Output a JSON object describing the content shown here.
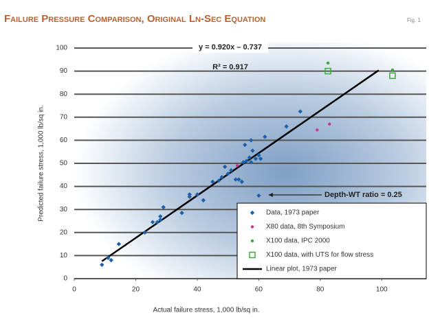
{
  "chart_data": {
    "type": "scatter",
    "title": "Failure Pressure Comparison, Original Ln-Sec Equation",
    "figure_label": "Fig. 1",
    "x_label": "Actual failure stress, 1,000 lb/sq in.",
    "y_label": "Predicted failure stress, 1,000 lb/sq in.",
    "xlim": [
      0,
      110
    ],
    "ylim": [
      0,
      100
    ],
    "xticks": [
      0,
      20,
      40,
      60,
      80,
      100
    ],
    "yticks": [
      0,
      10,
      20,
      30,
      40,
      50,
      60,
      70,
      80,
      90,
      100
    ],
    "grid": true,
    "legend": "lower right",
    "annotations": [
      "y = 0.920x – 0.737",
      "R² = 0.917",
      "Depth-WT ratio = 0.25"
    ],
    "series": [
      {
        "name": "Data, 1973 paper",
        "color": "#1f5fa8",
        "marker": "diamond",
        "x": [
          9,
          11,
          12,
          14.5,
          23,
          25.5,
          27,
          28,
          28,
          29,
          35,
          37.5,
          37.5,
          40,
          42,
          45,
          47,
          48,
          49,
          50,
          51,
          52.5,
          53.5,
          54.5,
          55,
          55.5,
          56,
          57,
          57.5,
          57.5,
          58,
          59,
          60,
          60.6,
          60,
          62,
          69,
          73.5
        ],
        "values": [
          6,
          9,
          8,
          15,
          20,
          24.5,
          24.5,
          25.5,
          27,
          31,
          28.5,
          36.5,
          35.5,
          36.5,
          34,
          42,
          42.5,
          44,
          48.5,
          45.5,
          47,
          43,
          43,
          42,
          50.5,
          58,
          51,
          52.5,
          50.5,
          60,
          55.5,
          52,
          53.5,
          52,
          36,
          61.5,
          66,
          72.5
        ]
      },
      {
        "name": "X80 data, 8th Symposium",
        "color": "#d0309a",
        "marker": "dot",
        "x": [
          53,
          79,
          83
        ],
        "values": [
          49,
          64.5,
          67
        ]
      },
      {
        "name": "X100 data, IPC 2000",
        "color": "#3aa83a",
        "marker": "dot",
        "x": [
          82.5,
          103.5
        ],
        "values": [
          93.5,
          90.5
        ]
      },
      {
        "name": "X100 data, with UTS for flow stress",
        "color": "#3aa83a",
        "marker": "open-square",
        "x": [
          82.5,
          103.5
        ],
        "values": [
          90,
          88
        ]
      },
      {
        "name": "Linear plot, 1973 paper",
        "color": "#000000",
        "marker": "line",
        "x": [
          9,
          99
        ],
        "values": [
          7.543,
          90.343
        ]
      }
    ]
  }
}
